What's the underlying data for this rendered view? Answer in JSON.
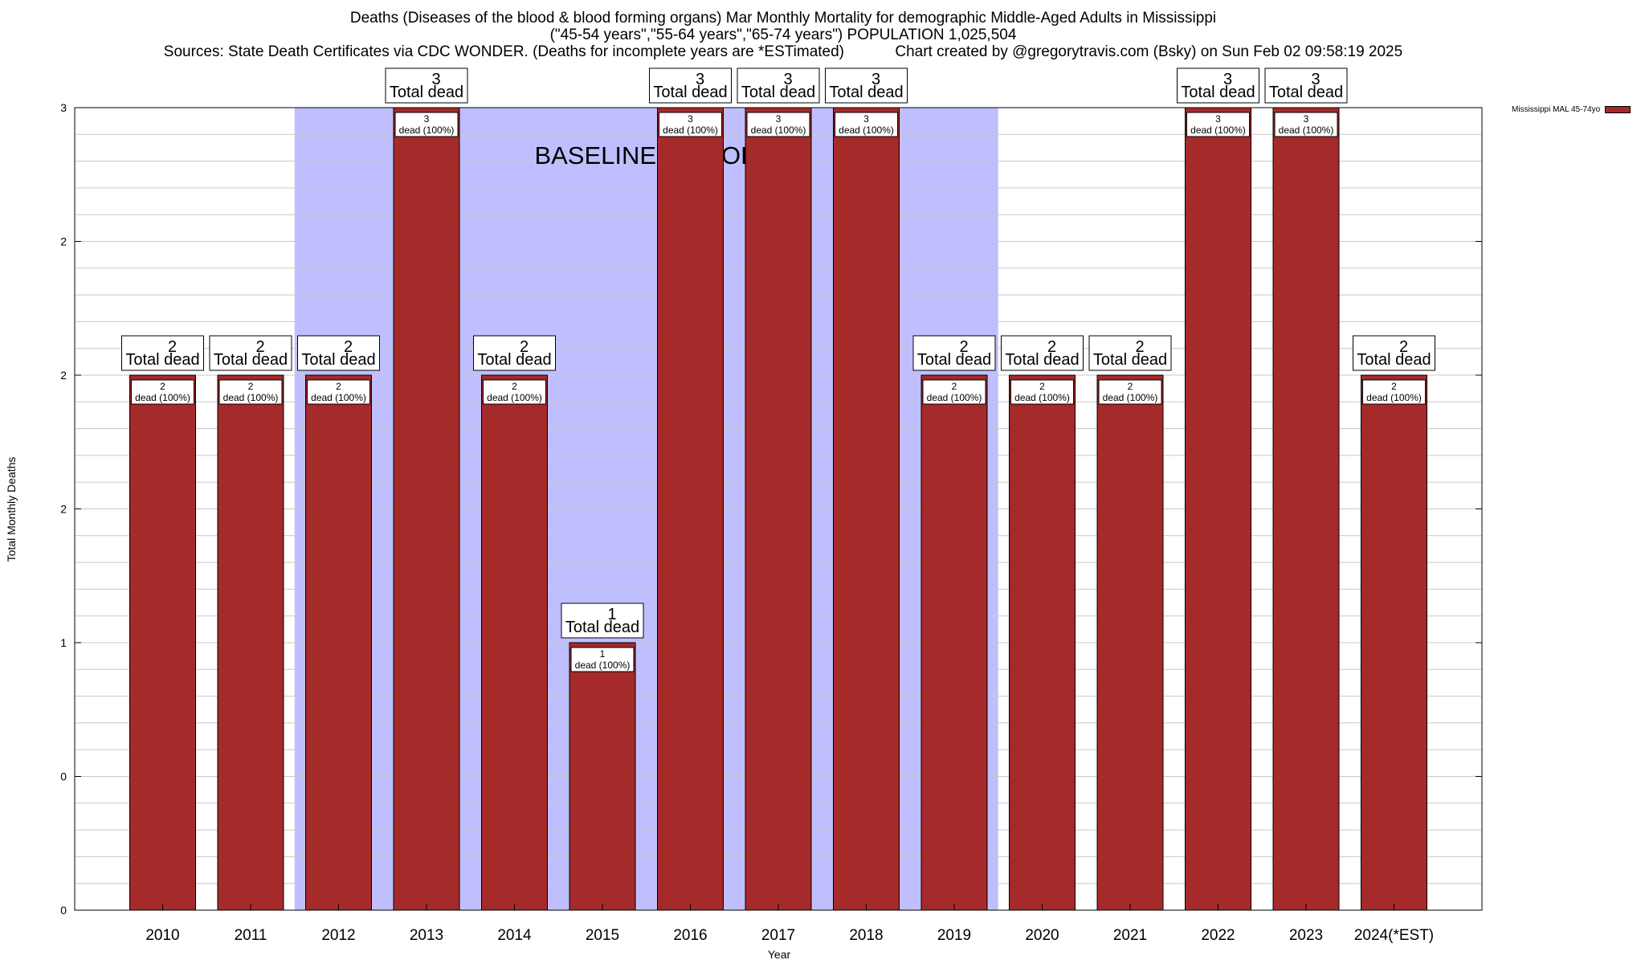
{
  "title": {
    "line1": "Deaths (Diseases of the blood & blood forming organs) Mar Monthly Mortality for demographic Middle-Aged Adults in Mississippi",
    "line2": "(\"45-54 years\",\"55-64 years\",\"65-74 years\") POPULATION 1,025,504",
    "line3_left": "Sources: State Death Certificates via CDC WONDER. (Deaths for incomplete years are *ESTimated)",
    "line3_right": "Chart created by @gregorytravis.com (Bsky) on Sun Feb 02 09:58:19 2025"
  },
  "legend": {
    "label": "Mississippi MAL 45-74yo",
    "color": "#a52a2a"
  },
  "baseline_label": "BASELINE PERIOD",
  "colors": {
    "bar": "#a52a2a",
    "baseline_shade": "#bfbfff",
    "grid": "#c8c8c8"
  },
  "chart_data": {
    "type": "bar",
    "title": "Deaths (Diseases of the blood & blood forming organs) Mar Monthly Mortality for demographic Middle-Aged Adults in Mississippi",
    "xlabel": "Year",
    "ylabel": "Total Monthly Deaths",
    "categories": [
      "2010",
      "2011",
      "2012",
      "2013",
      "2014",
      "2015",
      "2016",
      "2017",
      "2018",
      "2019",
      "2020",
      "2021",
      "2022",
      "2023",
      "2024(*EST)"
    ],
    "series": [
      {
        "name": "Mississippi MAL 45-74yo",
        "values": [
          2,
          2,
          2,
          3,
          2,
          1,
          3,
          3,
          3,
          2,
          2,
          2,
          3,
          3,
          2
        ]
      }
    ],
    "ylim": [
      0,
      3
    ],
    "y_tick_labels": [
      "0",
      "0",
      "1",
      "2",
      "2",
      "2",
      "3"
    ],
    "top_label_suffix": "Total dead",
    "inner_label_suffix": "dead (100%)",
    "baseline_period": [
      "2012",
      "2019"
    ],
    "grid": true,
    "legend_position": "top-right"
  }
}
